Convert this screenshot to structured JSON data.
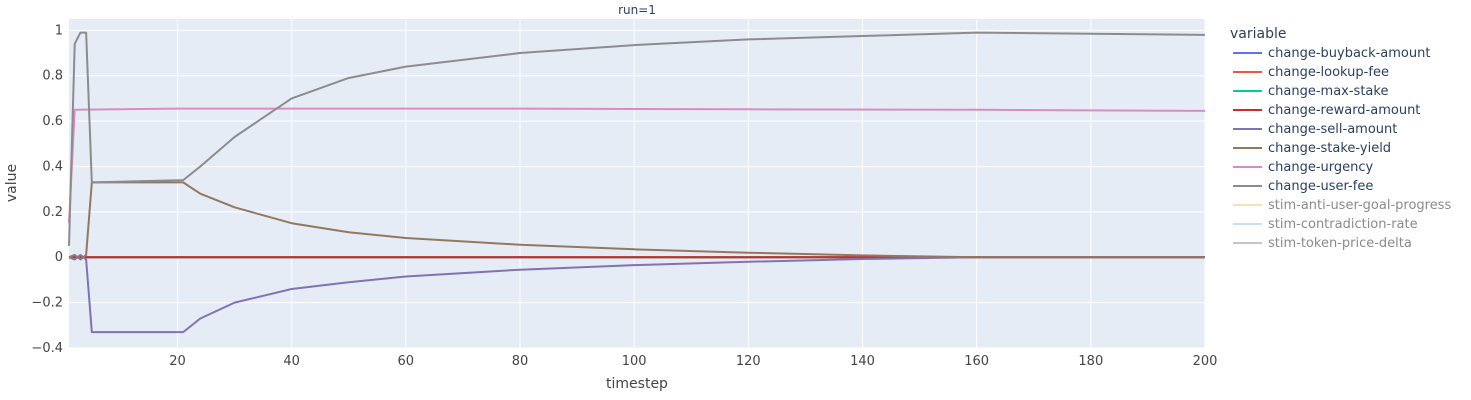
{
  "chart_data": {
    "type": "line",
    "facet_title": "run=1",
    "xlabel": "timestep",
    "ylabel": "value",
    "xlim": [
      1,
      200
    ],
    "ylim": [
      -0.4,
      1.05
    ],
    "x_ticks": [
      20,
      40,
      60,
      80,
      100,
      120,
      140,
      160,
      180,
      200
    ],
    "y_ticks": [
      -0.4,
      -0.2,
      0,
      0.2,
      0.4,
      0.6,
      0.8,
      1
    ],
    "y_tick_labels": [
      "−0.4",
      "−0.2",
      "0",
      "0.2",
      "0.4",
      "0.6",
      "0.8",
      "1"
    ],
    "grid": true,
    "legend_position": "right",
    "legend_title": "variable",
    "series": [
      {
        "name": "change-buyback-amount",
        "color": "#636efa",
        "visible": true,
        "points": [
          [
            1,
            0
          ],
          [
            2,
            0
          ],
          [
            200,
            0
          ]
        ]
      },
      {
        "name": "change-lookup-fee",
        "color": "#ef553b",
        "visible": true,
        "points": [
          [
            1,
            0
          ],
          [
            2,
            0
          ],
          [
            200,
            0
          ]
        ]
      },
      {
        "name": "change-max-stake",
        "color": "#00cc96",
        "visible": true,
        "points": [
          [
            1,
            0
          ],
          [
            200,
            0
          ]
        ]
      },
      {
        "name": "change-reward-amount",
        "color": "#d62728",
        "visible": true,
        "points": [
          [
            1,
            0
          ],
          [
            200,
            0
          ]
        ]
      },
      {
        "name": "change-sell-amount",
        "color": "#8172b3",
        "visible": true,
        "points": [
          [
            1,
            0
          ],
          [
            2,
            -0.01
          ],
          [
            3,
            0.01
          ],
          [
            4,
            -0.01
          ],
          [
            5,
            -0.33
          ],
          [
            21,
            -0.33
          ],
          [
            24,
            -0.27
          ],
          [
            30,
            -0.2
          ],
          [
            40,
            -0.14
          ],
          [
            50,
            -0.11
          ],
          [
            60,
            -0.085
          ],
          [
            80,
            -0.055
          ],
          [
            100,
            -0.035
          ],
          [
            120,
            -0.02
          ],
          [
            140,
            -0.008
          ],
          [
            160,
            0
          ],
          [
            200,
            0
          ]
        ]
      },
      {
        "name": "change-stake-yield",
        "color": "#937860",
        "visible": true,
        "points": [
          [
            1,
            0
          ],
          [
            2,
            0.01
          ],
          [
            3,
            -0.01
          ],
          [
            4,
            0.01
          ],
          [
            5,
            0.33
          ],
          [
            21,
            0.33
          ],
          [
            24,
            0.28
          ],
          [
            30,
            0.22
          ],
          [
            40,
            0.15
          ],
          [
            50,
            0.11
          ],
          [
            60,
            0.085
          ],
          [
            80,
            0.055
          ],
          [
            100,
            0.035
          ],
          [
            120,
            0.02
          ],
          [
            140,
            0.008
          ],
          [
            160,
            0
          ],
          [
            200,
            0
          ]
        ]
      },
      {
        "name": "change-urgency",
        "color": "#da8bc3",
        "visible": true,
        "points": [
          [
            1,
            0.15
          ],
          [
            2,
            0.65
          ],
          [
            20,
            0.655
          ],
          [
            40,
            0.655
          ],
          [
            80,
            0.655
          ],
          [
            120,
            0.652
          ],
          [
            160,
            0.65
          ],
          [
            200,
            0.645
          ]
        ]
      },
      {
        "name": "change-user-fee",
        "color": "#8c8c8c",
        "visible": true,
        "points": [
          [
            1,
            0.05
          ],
          [
            2,
            0.94
          ],
          [
            3,
            0.99
          ],
          [
            4,
            0.99
          ],
          [
            5,
            0.33
          ],
          [
            21,
            0.34
          ],
          [
            24,
            0.4
          ],
          [
            30,
            0.53
          ],
          [
            40,
            0.7
          ],
          [
            50,
            0.79
          ],
          [
            60,
            0.84
          ],
          [
            80,
            0.9
          ],
          [
            100,
            0.935
          ],
          [
            120,
            0.96
          ],
          [
            140,
            0.975
          ],
          [
            160,
            0.99
          ],
          [
            180,
            0.985
          ],
          [
            200,
            0.98
          ]
        ]
      },
      {
        "name": "stim-anti-user-goal-progress",
        "color": "#efd9a8",
        "visible": false,
        "points": []
      },
      {
        "name": "stim-contradiction-rate",
        "color": "#b7d7ea",
        "visible": false,
        "points": []
      },
      {
        "name": "stim-token-price-delta",
        "color": "#a9bcc3",
        "visible": false,
        "points": []
      }
    ]
  }
}
